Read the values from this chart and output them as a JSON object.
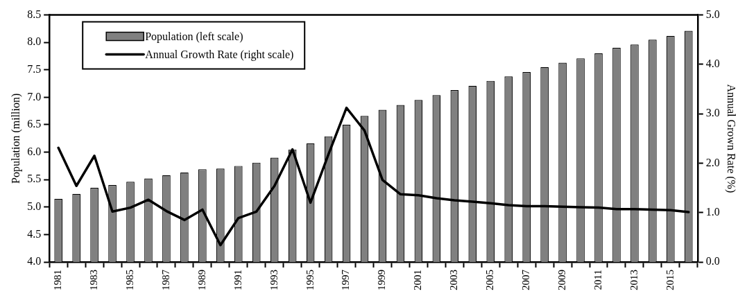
{
  "chart_data": {
    "type": "bar",
    "categories": [
      "1981",
      null,
      "1983",
      null,
      "1985",
      null,
      "1987",
      null,
      "1989",
      null,
      "1991",
      null,
      "1993",
      null,
      "1995",
      null,
      "1997",
      null,
      "1999",
      null,
      "2001",
      null,
      "2003",
      null,
      "2005",
      null,
      "2007",
      null,
      "2009",
      null,
      "2011",
      null,
      "2013",
      null,
      "2015",
      null
    ],
    "series": [
      {
        "name": "Population (left scale)",
        "color": "#808080",
        "values": [
          5.15,
          5.24,
          5.35,
          5.4,
          5.46,
          5.52,
          5.58,
          5.63,
          5.69,
          5.7,
          5.75,
          5.81,
          5.9,
          6.05,
          6.16,
          6.29,
          6.5,
          6.66,
          6.77,
          6.86,
          6.95,
          7.04,
          7.13,
          7.21,
          7.3,
          7.38,
          7.46,
          7.55,
          7.63,
          7.71,
          7.8,
          7.9,
          7.96,
          8.05,
          8.12,
          8.21
        ]
      },
      {
        "name": "Annual Growth Rate (right scale)",
        "type": "line",
        "axis": "y2",
        "color": "#000000",
        "values": [
          2.31,
          1.54,
          2.15,
          1.02,
          1.1,
          1.26,
          1.03,
          0.85,
          1.06,
          0.34,
          0.89,
          1.02,
          1.54,
          2.28,
          1.2,
          2.18,
          3.12,
          2.66,
          1.66,
          1.37,
          1.35,
          1.29,
          1.25,
          1.22,
          1.19,
          1.15,
          1.13,
          1.13,
          1.12,
          1.11,
          1.1,
          1.07,
          1.07,
          1.06,
          1.05,
          1.01
        ]
      }
    ],
    "ylabel": "Population (million)",
    "y2label": "Annual Grown Rate (%)",
    "ylim": [
      4,
      8.5
    ],
    "yticks": [
      {
        "value": 4,
        "label": "4.0"
      },
      4.5,
      {
        "value": 5,
        "label": "5.0"
      },
      5.5,
      {
        "value": 6,
        "label": "6.0"
      },
      6.5,
      {
        "value": 7,
        "label": "7.0"
      },
      7.5,
      {
        "value": 8,
        "label": "8.0"
      },
      8.5
    ],
    "y2lim": [
      0,
      5
    ],
    "y2ticks": [
      {
        "value": 0,
        "label": "0.0"
      },
      {
        "value": 1,
        "label": "1.0"
      },
      {
        "value": 2,
        "label": "2.0"
      },
      {
        "value": 3,
        "label": "3.0"
      },
      {
        "value": 4,
        "label": "4.0"
      },
      {
        "value": 5,
        "label": "5.0"
      }
    ],
    "grid": false,
    "legend": "top left",
    "marker": "none",
    "line_style": "solid"
  }
}
